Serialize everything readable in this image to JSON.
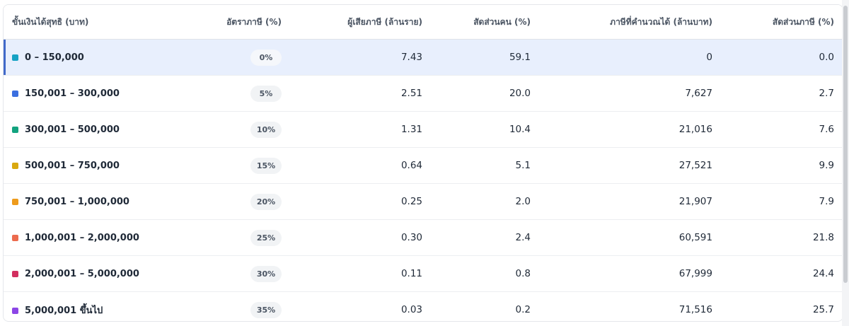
{
  "table": {
    "headers": {
      "bracket": "ขั้นเงินได้สุทธิ (บาท)",
      "rate": "อัตราภาษี (%)",
      "taxpayers": "ผู้เสียภาษี (ล้านราย)",
      "people_share": "สัดส่วนคน (%)",
      "tax_calc": "ภาษีที่คำนวณได้ (ล้านบาท)",
      "tax_share": "สัดส่วนภาษี (%)"
    },
    "rows": [
      {
        "bracket": "0 – 150,000",
        "dot_color": "#17a2c4",
        "rate": "0%",
        "taxpayers": "7.43",
        "people_share": "59.1",
        "tax_calc": "0",
        "tax_share": "0.0"
      },
      {
        "bracket": "150,001 – 300,000",
        "dot_color": "#3b6fe0",
        "rate": "5%",
        "taxpayers": "2.51",
        "people_share": "20.0",
        "tax_calc": "7,627",
        "tax_share": "2.7"
      },
      {
        "bracket": "300,001 – 500,000",
        "dot_color": "#13a37f",
        "rate": "10%",
        "taxpayers": "1.31",
        "people_share": "10.4",
        "tax_calc": "21,016",
        "tax_share": "7.6"
      },
      {
        "bracket": "500,001 – 750,000",
        "dot_color": "#d9a80f",
        "rate": "15%",
        "taxpayers": "0.64",
        "people_share": "5.1",
        "tax_calc": "27,521",
        "tax_share": "9.9"
      },
      {
        "bracket": "750,001 – 1,000,000",
        "dot_color": "#ee9b1c",
        "rate": "20%",
        "taxpayers": "0.25",
        "people_share": "2.0",
        "tax_calc": "21,907",
        "tax_share": "7.9"
      },
      {
        "bracket": "1,000,001 – 2,000,000",
        "dot_color": "#ec6b4e",
        "rate": "25%",
        "taxpayers": "0.30",
        "people_share": "2.4",
        "tax_calc": "60,591",
        "tax_share": "21.8"
      },
      {
        "bracket": "2,000,001 – 5,000,000",
        "dot_color": "#d22f5f",
        "rate": "30%",
        "taxpayers": "0.11",
        "people_share": "0.8",
        "tax_calc": "67,999",
        "tax_share": "24.4"
      },
      {
        "bracket": "5,000,001 ขึ้นไป",
        "dot_color": "#8c46e6",
        "rate": "35%",
        "taxpayers": "0.03",
        "people_share": "0.2",
        "tax_calc": "71,516",
        "tax_share": "25.7"
      }
    ]
  },
  "highlight_color": "#e8effd",
  "accent_color": "#4169c9"
}
